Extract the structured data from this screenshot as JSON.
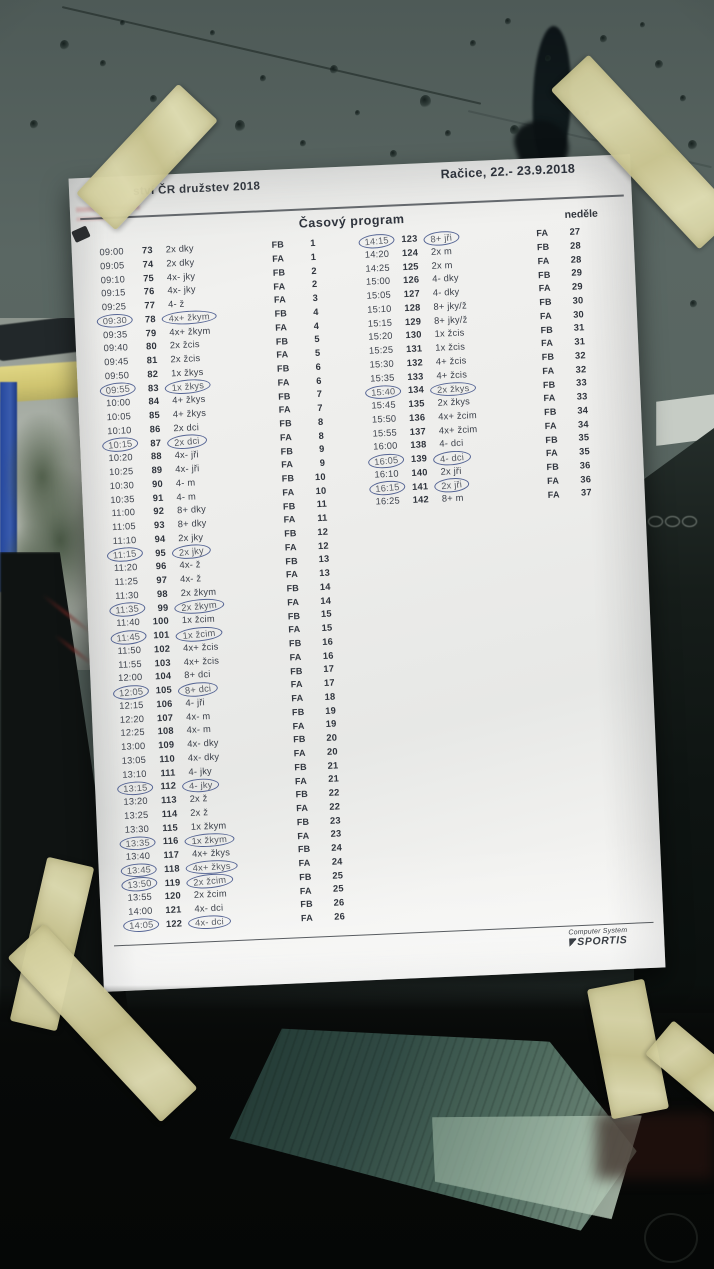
{
  "paper": {
    "header": {
      "championship_fragment": "ství ČR družstev 2018",
      "venue_date": "Račice,  22.- 23.9.2018",
      "program_title": "Časový program",
      "day": "neděle"
    },
    "footer": {
      "maker_line1": "Computer System",
      "maker_line2": "SPORTIS"
    },
    "schedule_left": [
      {
        "time": "09:00",
        "race": "73",
        "boat": "2x dky",
        "final": "FB",
        "heat": "1",
        "circled": false
      },
      {
        "time": "09:05",
        "race": "74",
        "boat": "2x dky",
        "final": "FA",
        "heat": "1",
        "circled": false
      },
      {
        "time": "09:10",
        "race": "75",
        "boat": "4x- jky",
        "final": "FB",
        "heat": "2",
        "circled": false
      },
      {
        "time": "09:15",
        "race": "76",
        "boat": "4x- jky",
        "final": "FA",
        "heat": "2",
        "circled": false
      },
      {
        "time": "09:25",
        "race": "77",
        "boat": "4- ž",
        "final": "FA",
        "heat": "3",
        "circled": false
      },
      {
        "time": "09:30",
        "race": "78",
        "boat": "4x+ žkym",
        "final": "FB",
        "heat": "4",
        "circled": true
      },
      {
        "time": "09:35",
        "race": "79",
        "boat": "4x+ žkym",
        "final": "FA",
        "heat": "4",
        "circled": false
      },
      {
        "time": "09:40",
        "race": "80",
        "boat": "2x žcis",
        "final": "FB",
        "heat": "5",
        "circled": false
      },
      {
        "time": "09:45",
        "race": "81",
        "boat": "2x žcis",
        "final": "FA",
        "heat": "5",
        "circled": false
      },
      {
        "time": "09:50",
        "race": "82",
        "boat": "1x žkys",
        "final": "FB",
        "heat": "6",
        "circled": false
      },
      {
        "time": "09:55",
        "race": "83",
        "boat": "1x žkys",
        "final": "FA",
        "heat": "6",
        "circled": true
      },
      {
        "time": "10:00",
        "race": "84",
        "boat": "4+ žkys",
        "final": "FB",
        "heat": "7",
        "circled": false
      },
      {
        "time": "10:05",
        "race": "85",
        "boat": "4+ žkys",
        "final": "FA",
        "heat": "7",
        "circled": false
      },
      {
        "time": "10:10",
        "race": "86",
        "boat": "2x dci",
        "final": "FB",
        "heat": "8",
        "circled": false
      },
      {
        "time": "10:15",
        "race": "87",
        "boat": "2x dci",
        "final": "FA",
        "heat": "8",
        "circled": true
      },
      {
        "time": "10:20",
        "race": "88",
        "boat": "4x- jři",
        "final": "FB",
        "heat": "9",
        "circled": false
      },
      {
        "time": "10:25",
        "race": "89",
        "boat": "4x- jři",
        "final": "FA",
        "heat": "9",
        "circled": false
      },
      {
        "time": "10:30",
        "race": "90",
        "boat": "4- m",
        "final": "FB",
        "heat": "10",
        "circled": false
      },
      {
        "time": "10:35",
        "race": "91",
        "boat": "4- m",
        "final": "FA",
        "heat": "10",
        "circled": false
      },
      {
        "time": "11:00",
        "race": "92",
        "boat": "8+ dky",
        "final": "FB",
        "heat": "11",
        "circled": false
      },
      {
        "time": "11:05",
        "race": "93",
        "boat": "8+ dky",
        "final": "FA",
        "heat": "11",
        "circled": false
      },
      {
        "time": "11:10",
        "race": "94",
        "boat": "2x jky",
        "final": "FB",
        "heat": "12",
        "circled": false
      },
      {
        "time": "11:15",
        "race": "95",
        "boat": "2x jky",
        "final": "FA",
        "heat": "12",
        "circled": true
      },
      {
        "time": "11:20",
        "race": "96",
        "boat": "4x- ž",
        "final": "FB",
        "heat": "13",
        "circled": false
      },
      {
        "time": "11:25",
        "race": "97",
        "boat": "4x- ž",
        "final": "FA",
        "heat": "13",
        "circled": false
      },
      {
        "time": "11:30",
        "race": "98",
        "boat": "2x žkym",
        "final": "FB",
        "heat": "14",
        "circled": false
      },
      {
        "time": "11:35",
        "race": "99",
        "boat": "2x žkym",
        "final": "FA",
        "heat": "14",
        "circled": true
      },
      {
        "time": "11:40",
        "race": "100",
        "boat": "1x žcim",
        "final": "FB",
        "heat": "15",
        "circled": false
      },
      {
        "time": "11:45",
        "race": "101",
        "boat": "1x žcim",
        "final": "FA",
        "heat": "15",
        "circled": true
      },
      {
        "time": "11:50",
        "race": "102",
        "boat": "4x+ žcis",
        "final": "FB",
        "heat": "16",
        "circled": false
      },
      {
        "time": "11:55",
        "race": "103",
        "boat": "4x+ žcis",
        "final": "FA",
        "heat": "16",
        "circled": false
      },
      {
        "time": "12:00",
        "race": "104",
        "boat": "8+ dci",
        "final": "FB",
        "heat": "17",
        "circled": false
      },
      {
        "time": "12:05",
        "race": "105",
        "boat": "8+ dci",
        "final": "FA",
        "heat": "17",
        "circled": true
      },
      {
        "time": "12:15",
        "race": "106",
        "boat": "4- jři",
        "final": "FA",
        "heat": "18",
        "circled": false
      },
      {
        "time": "12:20",
        "race": "107",
        "boat": "4x- m",
        "final": "FB",
        "heat": "19",
        "circled": false
      },
      {
        "time": "12:25",
        "race": "108",
        "boat": "4x- m",
        "final": "FA",
        "heat": "19",
        "circled": false
      },
      {
        "time": "13:00",
        "race": "109",
        "boat": "4x- dky",
        "final": "FB",
        "heat": "20",
        "circled": false
      },
      {
        "time": "13:05",
        "race": "110",
        "boat": "4x- dky",
        "final": "FA",
        "heat": "20",
        "circled": false
      },
      {
        "time": "13:10",
        "race": "111",
        "boat": "4- jky",
        "final": "FB",
        "heat": "21",
        "circled": false
      },
      {
        "time": "13:15",
        "race": "112",
        "boat": "4- jky",
        "final": "FA",
        "heat": "21",
        "circled": true
      },
      {
        "time": "13:20",
        "race": "113",
        "boat": "2x ž",
        "final": "FB",
        "heat": "22",
        "circled": false
      },
      {
        "time": "13:25",
        "race": "114",
        "boat": "2x ž",
        "final": "FA",
        "heat": "22",
        "circled": false
      },
      {
        "time": "13:30",
        "race": "115",
        "boat": "1x žkym",
        "final": "FB",
        "heat": "23",
        "circled": false
      },
      {
        "time": "13:35",
        "race": "116",
        "boat": "1x žkym",
        "final": "FA",
        "heat": "23",
        "circled": true
      },
      {
        "time": "13:40",
        "race": "117",
        "boat": "4x+ žkys",
        "final": "FB",
        "heat": "24",
        "circled": false
      },
      {
        "time": "13:45",
        "race": "118",
        "boat": "4x+ žkys",
        "final": "FA",
        "heat": "24",
        "circled": true
      },
      {
        "time": "13:50",
        "race": "119",
        "boat": "2x žcim",
        "final": "FB",
        "heat": "25",
        "circled": true
      },
      {
        "time": "13:55",
        "race": "120",
        "boat": "2x žcim",
        "final": "FA",
        "heat": "25",
        "circled": false
      },
      {
        "time": "14:00",
        "race": "121",
        "boat": "4x- dci",
        "final": "FB",
        "heat": "26",
        "circled": false
      },
      {
        "time": "14:05",
        "race": "122",
        "boat": "4x- dci",
        "final": "FA",
        "heat": "26",
        "circled": true
      }
    ],
    "schedule_right": [
      {
        "time": "14:15",
        "race": "123",
        "boat": "8+ jři",
        "final": "FA",
        "heat": "27",
        "circled": true
      },
      {
        "time": "14:20",
        "race": "124",
        "boat": "2x m",
        "final": "FB",
        "heat": "28",
        "circled": false
      },
      {
        "time": "14:25",
        "race": "125",
        "boat": "2x m",
        "final": "FA",
        "heat": "28",
        "circled": false
      },
      {
        "time": "15:00",
        "race": "126",
        "boat": "4- dky",
        "final": "FB",
        "heat": "29",
        "circled": false
      },
      {
        "time": "15:05",
        "race": "127",
        "boat": "4- dky",
        "final": "FA",
        "heat": "29",
        "circled": false
      },
      {
        "time": "15:10",
        "race": "128",
        "boat": "8+ jky/ž",
        "final": "FB",
        "heat": "30",
        "circled": false
      },
      {
        "time": "15:15",
        "race": "129",
        "boat": "8+ jky/ž",
        "final": "FA",
        "heat": "30",
        "circled": false
      },
      {
        "time": "15:20",
        "race": "130",
        "boat": "1x žcis",
        "final": "FB",
        "heat": "31",
        "circled": false
      },
      {
        "time": "15:25",
        "race": "131",
        "boat": "1x žcis",
        "final": "FA",
        "heat": "31",
        "circled": false
      },
      {
        "time": "15:30",
        "race": "132",
        "boat": "4+ žcis",
        "final": "FB",
        "heat": "32",
        "circled": false
      },
      {
        "time": "15:35",
        "race": "133",
        "boat": "4+ žcis",
        "final": "FA",
        "heat": "32",
        "circled": false
      },
      {
        "time": "15:40",
        "race": "134",
        "boat": "2x žkys",
        "final": "FB",
        "heat": "33",
        "circled": true
      },
      {
        "time": "15:45",
        "race": "135",
        "boat": "2x žkys",
        "final": "FA",
        "heat": "33",
        "circled": false
      },
      {
        "time": "15:50",
        "race": "136",
        "boat": "4x+ žcim",
        "final": "FB",
        "heat": "34",
        "circled": false
      },
      {
        "time": "15:55",
        "race": "137",
        "boat": "4x+ žcim",
        "final": "FA",
        "heat": "34",
        "circled": false
      },
      {
        "time": "16:00",
        "race": "138",
        "boat": "4- dci",
        "final": "FB",
        "heat": "35",
        "circled": false
      },
      {
        "time": "16:05",
        "race": "139",
        "boat": "4- dci",
        "final": "FA",
        "heat": "35",
        "circled": true
      },
      {
        "time": "16:10",
        "race": "140",
        "boat": "2x jři",
        "final": "FB",
        "heat": "36",
        "circled": false
      },
      {
        "time": "16:15",
        "race": "141",
        "boat": "2x jři",
        "final": "FA",
        "heat": "36",
        "circled": true
      },
      {
        "time": "16:25",
        "race": "142",
        "boat": "8+ m",
        "final": "FA",
        "heat": "37",
        "circled": false
      }
    ]
  },
  "colors": {
    "pen_ink": "#3c4e86",
    "tape": "#d6d1a0",
    "paper": "#efefed",
    "glass": "#57645f"
  }
}
